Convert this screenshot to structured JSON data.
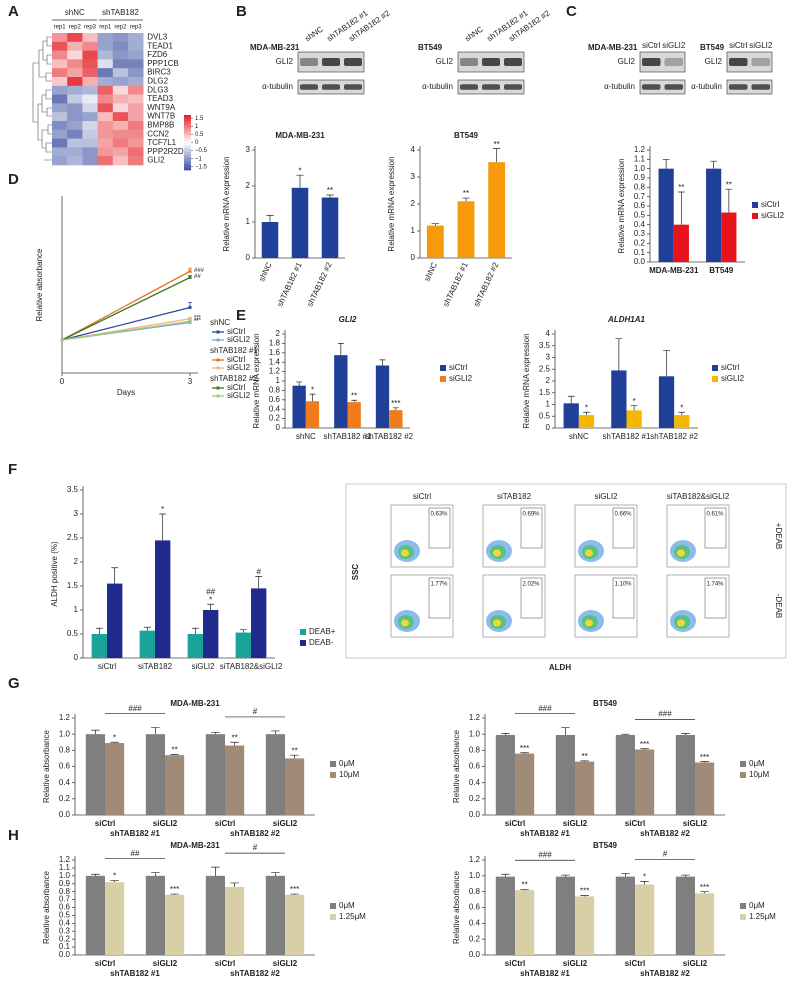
{
  "panel_labels": [
    "A",
    "B",
    "C",
    "D",
    "E",
    "F",
    "G",
    "H"
  ],
  "blots": [
    {
      "cell": "MDA-MB-231",
      "lanes": [
        "shNC",
        "shTAB182 #1",
        "shTAB182 #2"
      ],
      "rows": [
        "GLI2",
        "α-tubulin"
      ]
    },
    {
      "cell": "BT549",
      "lanes": [
        "shNC",
        "shTAB182 #1",
        "shTAB182 #2"
      ],
      "rows": [
        "GLI2",
        "α-tubulin"
      ]
    },
    {
      "cell": "MDA-MB-231",
      "lanes": [
        "siCtrl",
        "siGLI2"
      ],
      "rows": [
        "GLI2",
        "α-tubulin"
      ]
    },
    {
      "cell": "BT549",
      "lanes": [
        "siCtrl",
        "siGLI2"
      ],
      "rows": [
        "GLI2",
        "α-tubulin"
      ]
    }
  ],
  "flow": {
    "columns": [
      "siCtrl",
      "siTAB182",
      "siGLI2",
      "siTAB182&siGLI2"
    ],
    "rows": [
      "+DEAB",
      "-DEAB"
    ],
    "percents": [
      [
        "0.63%",
        "0.69%",
        "0.66%",
        "0.61%"
      ],
      [
        "1.77%",
        "2.02%",
        "1.10%",
        "1.74%"
      ]
    ],
    "ylabel": "SSC",
    "xlabel": "ALDH"
  },
  "chart_data": [
    {
      "type": "heatmap",
      "column_groups": [
        "shNC",
        "shTAB182"
      ],
      "columns": [
        "rep1",
        "rep2",
        "rep3",
        "rep1",
        "rep2",
        "rep3"
      ],
      "rows": [
        "DVL3",
        "TEAD1",
        "FZD6",
        "PPP1CB",
        "BIRC3",
        "DLG2",
        "DLG3",
        "TEAD3",
        "WNT9A",
        "WNT7B",
        "BMP8B",
        "CCN2",
        "TCF7L1",
        "PPP2R2D",
        "GLI2"
      ],
      "values": [
        [
          0.8,
          1.4,
          0.5,
          -0.9,
          -1.0,
          -0.8
        ],
        [
          1.3,
          0.6,
          0.9,
          -0.9,
          -1.1,
          -0.8
        ],
        [
          0.9,
          0.3,
          1.4,
          -0.7,
          -1.0,
          -0.9
        ],
        [
          0.5,
          0.9,
          1.3,
          -0.3,
          -1.2,
          -1.2
        ],
        [
          1.0,
          0.7,
          1.2,
          -1.3,
          -0.6,
          -1.0
        ],
        [
          0.4,
          1.5,
          0.6,
          -0.8,
          -0.9,
          -0.8
        ],
        [
          -0.9,
          -0.8,
          -0.7,
          1.2,
          0.3,
          0.9
        ],
        [
          -1.3,
          -0.5,
          -0.2,
          0.9,
          0.6,
          0.5
        ],
        [
          -0.9,
          -1.0,
          -0.4,
          1.3,
          0.3,
          0.7
        ],
        [
          -0.6,
          -1.0,
          -0.9,
          0.5,
          1.3,
          0.7
        ],
        [
          -1.1,
          -0.9,
          -0.4,
          0.8,
          0.6,
          1.0
        ],
        [
          -0.9,
          -1.2,
          -0.5,
          0.8,
          0.9,
          0.9
        ],
        [
          -1.3,
          -0.6,
          -0.6,
          0.7,
          1.0,
          0.8
        ],
        [
          -0.8,
          -0.8,
          -1.0,
          0.8,
          0.7,
          1.1
        ],
        [
          -0.9,
          -0.7,
          -1.0,
          1.1,
          0.5,
          1.0
        ]
      ],
      "zlim": [
        -1.7,
        1.7
      ],
      "colors": [
        "#3b4fa0",
        "#ffffff",
        "#e41f26"
      ],
      "zticks": [
        1.5,
        1,
        0.5,
        0,
        {
          "value": -0.5,
          "label": "−0.5"
        },
        {
          "value": -1,
          "label": "−1"
        },
        {
          "value": -1.5,
          "label": "−1.5"
        }
      ]
    },
    {
      "type": "bar",
      "title": "MDA-MB-231",
      "ylabel": "Relative mRNA expression",
      "categories": [
        "shNC",
        "shTAB182 #1",
        "shTAB182 #2"
      ],
      "series": [
        {
          "color": "#1f3f99",
          "values": [
            1.0,
            1.95,
            1.68
          ],
          "errors": [
            0.18,
            0.35,
            0.07
          ],
          "significance": [
            null,
            "*",
            "**"
          ]
        }
      ],
      "ylim": [
        0,
        3
      ],
      "yticks": [
        0,
        1,
        2,
        3
      ]
    },
    {
      "type": "bar",
      "title": "BT549",
      "ylabel": "Relative mRNA expression",
      "categories": [
        "shNC",
        "shTAB182 #1",
        "shTAB182 #2"
      ],
      "series": [
        {
          "color": "#f59a0a",
          "values": [
            1.2,
            2.1,
            3.55
          ],
          "errors": [
            0.07,
            0.12,
            0.5
          ],
          "significance": [
            null,
            "**",
            "**"
          ]
        }
      ],
      "ylim": [
        0,
        4
      ],
      "yticks": [
        0,
        1,
        2,
        3,
        4
      ]
    },
    {
      "type": "bar",
      "ylabel": "Relative mRNA expression",
      "categories": [
        "MDA-MB-231",
        "BT549"
      ],
      "series": [
        {
          "name": "siCtrl",
          "color": "#1f3f99",
          "values": [
            1.0,
            1.0
          ],
          "errors": [
            0.1,
            0.08
          ],
          "significance": [
            null,
            null
          ]
        },
        {
          "name": "siGLI2",
          "color": "#e8141b",
          "values": [
            0.4,
            0.53
          ],
          "errors": [
            0.35,
            0.25
          ],
          "significance": [
            "**",
            "**"
          ]
        }
      ],
      "ylim": [
        0,
        1.2
      ],
      "yticks": [
        {
          "value": 0,
          "label": "0.0"
        },
        0.1,
        0.2,
        0.3,
        0.4,
        0.5,
        0.6,
        0.7,
        0.8,
        0.9,
        {
          "value": 1,
          "label": "1.0"
        },
        1.1,
        1.2
      ],
      "legend": "right"
    },
    {
      "type": "line",
      "xlabel": "Days",
      "ylabel": "Relative absorbance",
      "x": [
        0,
        3
      ],
      "xlim": [
        0,
        3
      ],
      "xticks": [
        0,
        3
      ],
      "ylim": [
        0,
        5
      ],
      "series_groups": [
        {
          "name": "shNC",
          "series": [
            {
              "name": "siCtrl",
              "color": "#2a4a9e",
              "values": [
                1,
                2.3
              ],
              "errors": [
                null,
                0.2
              ],
              "significance": null
            },
            {
              "name": "siGLI2",
              "color": "#7da6d8",
              "values": [
                1,
                1.7
              ],
              "errors": [
                null,
                0.05
              ],
              "significance": "**"
            }
          ]
        },
        {
          "name": "shTAB182 #1",
          "series": [
            {
              "name": "siCtrl",
              "color": "#e8731a",
              "values": [
                1,
                3.75
              ],
              "errors": [
                null,
                0.12
              ],
              "significance": "###"
            },
            {
              "name": "siGLI2",
              "color": "#f5b27a",
              "values": [
                1,
                1.85
              ],
              "errors": [
                null,
                0.06
              ],
              "significance": "***"
            }
          ]
        },
        {
          "name": "shTAB182 #2",
          "series": [
            {
              "name": "siCtrl",
              "color": "#3d7a2a",
              "values": [
                1,
                3.5
              ],
              "errors": [
                null,
                0.08
              ],
              "significance": "##"
            },
            {
              "name": "siGLI2",
              "color": "#9ccc7a",
              "values": [
                1,
                1.75
              ],
              "errors": [
                null,
                0.05
              ],
              "significance": "***"
            }
          ]
        }
      ]
    },
    {
      "type": "bar",
      "title": "GLI2",
      "ylabel": "Relative mRNA expression",
      "categories": [
        "shNC",
        "shTAB182 #1",
        "shTAB182 #2"
      ],
      "series": [
        {
          "name": "siCtrl",
          "color": "#1f3f99",
          "values": [
            0.9,
            1.55,
            1.33
          ],
          "errors": [
            0.08,
            0.25,
            0.12
          ],
          "significance": [
            null,
            null,
            null
          ]
        },
        {
          "name": "siGLI2",
          "color": "#f07c1e",
          "values": [
            0.57,
            0.55,
            0.38
          ],
          "errors": [
            0.15,
            0.04,
            0.05
          ],
          "significance": [
            "*",
            "**",
            "***"
          ]
        }
      ],
      "ylim": [
        0,
        2
      ],
      "yticks": [
        0,
        0.2,
        0.4,
        0.6,
        0.8,
        1,
        1.2,
        1.4,
        1.6,
        1.8,
        2
      ],
      "legend": "right"
    },
    {
      "type": "bar",
      "title": "ALDH1A1",
      "ylabel": "Relative mRNA expression",
      "categories": [
        "shNC",
        "shTAB182 #1",
        "shTAB182 #2"
      ],
      "series": [
        {
          "name": "siCtrl",
          "color": "#1f3f99",
          "values": [
            1.05,
            2.45,
            2.2
          ],
          "errors": [
            0.3,
            1.35,
            1.1
          ],
          "significance": [
            null,
            null,
            null
          ]
        },
        {
          "name": "siGLI2",
          "color": "#f5b800",
          "values": [
            0.55,
            0.75,
            0.55
          ],
          "errors": [
            0.12,
            0.2,
            0.12
          ],
          "significance": [
            "*",
            "*",
            "*"
          ]
        }
      ],
      "ylim": [
        0,
        4
      ],
      "yticks": [
        0,
        0.5,
        1,
        1.5,
        2,
        2.5,
        3,
        3.5,
        4
      ],
      "legend": "right"
    },
    {
      "type": "bar",
      "ylabel": "ALDH positive (%)",
      "categories": [
        "siCtrl",
        "siTAB182",
        "siGLI2",
        "siTAB182&siGLI2"
      ],
      "series": [
        {
          "name": "DEAB+",
          "color": "#1aa39a",
          "values": [
            0.5,
            0.57,
            0.5,
            0.53
          ],
          "errors": [
            0.12,
            0.07,
            0.12,
            0.06
          ],
          "significance": [
            null,
            null,
            null,
            null
          ]
        },
        {
          "name": "DEAB-",
          "color": "#1f2a8c",
          "values": [
            1.55,
            2.45,
            1.0,
            1.45
          ],
          "errors": [
            0.33,
            0.55,
            0.12,
            0.25
          ],
          "significance": [
            null,
            "*",
            [
              "##",
              "*"
            ],
            "#"
          ]
        }
      ],
      "ylim": [
        0,
        3.5
      ],
      "yticks": [
        0,
        0.5,
        1,
        1.5,
        2,
        2.5,
        3,
        3.5
      ],
      "legend": "right"
    },
    {
      "type": "bar",
      "title": "MDA-MB-231",
      "ylabel": "Relative absorbance",
      "categories": [
        "siCtrl",
        "siGLI2",
        "siCtrl",
        "siGLI2"
      ],
      "groups": [
        "shTAB182 #1",
        "shTAB182 #2"
      ],
      "brackets": [
        "###",
        "#"
      ],
      "series": [
        {
          "name": "0μM",
          "color": "#7f7f7f",
          "values": [
            1.0,
            1.0,
            1.0,
            1.0
          ],
          "errors": [
            0.05,
            0.08,
            0.02,
            0.04
          ],
          "significance": [
            null,
            null,
            null,
            null
          ]
        },
        {
          "name": "10μM",
          "color": "#a08a78",
          "values": [
            0.89,
            0.74,
            0.86,
            0.7
          ],
          "errors": [
            0.01,
            0.01,
            0.04,
            0.04
          ],
          "significance": [
            "*",
            "**",
            "**",
            "**"
          ]
        }
      ],
      "ylim": [
        0,
        1.2
      ],
      "yticks": [
        {
          "value": 0,
          "label": "0.0"
        },
        0.2,
        0.4,
        0.6,
        0.8,
        {
          "value": 1,
          "label": "1.0"
        },
        1.2
      ],
      "legend": "right"
    },
    {
      "type": "bar",
      "title": "BT549",
      "ylabel": "Relative absorbance",
      "categories": [
        "siCtrl",
        "siGLI2",
        "siCtrl",
        "siGLI2"
      ],
      "groups": [
        "shTAB182 #1",
        "shTAB182 #2"
      ],
      "brackets": [
        "###",
        "###"
      ],
      "series": [
        {
          "name": "0μM",
          "color": "#7f7f7f",
          "values": [
            0.99,
            0.99,
            0.99,
            0.99
          ],
          "errors": [
            0.02,
            0.09,
            0.01,
            0.02
          ],
          "significance": [
            null,
            null,
            null,
            null
          ]
        },
        {
          "name": "10μM",
          "color": "#a08a78",
          "values": [
            0.76,
            0.66,
            0.81,
            0.65
          ],
          "errors": [
            0.01,
            0.01,
            0.01,
            0.01
          ],
          "significance": [
            "***",
            "**",
            "***",
            "***"
          ]
        }
      ],
      "ylim": [
        0,
        1.2
      ],
      "yticks": [
        {
          "value": 0,
          "label": "0.0"
        },
        0.2,
        0.4,
        0.6,
        0.8,
        {
          "value": 1,
          "label": "1.0"
        },
        1.2
      ],
      "legend": "right"
    },
    {
      "type": "bar",
      "title": "MDA-MB-231",
      "ylabel": "Relative absorbance",
      "categories": [
        "siCtrl",
        "siGLI2",
        "siCtrl",
        "siGLI2"
      ],
      "groups": [
        "shTAB182 #1",
        "shTAB182 #2"
      ],
      "brackets": [
        "##",
        "#"
      ],
      "series": [
        {
          "name": "0μM",
          "color": "#7f7f7f",
          "values": [
            1.0,
            1.0,
            1.0,
            1.0
          ],
          "errors": [
            0.02,
            0.04,
            0.11,
            0.04
          ],
          "significance": [
            null,
            null,
            null,
            null
          ]
        },
        {
          "name": "1.25μM",
          "color": "#d9cfa6",
          "values": [
            0.92,
            0.76,
            0.86,
            0.76
          ],
          "errors": [
            0.02,
            0.01,
            0.05,
            0.01
          ],
          "significance": [
            "*",
            "***",
            null,
            "***"
          ]
        }
      ],
      "ylim": [
        0,
        1.2
      ],
      "yticks": [
        {
          "value": 0,
          "label": "0.0"
        },
        0.1,
        0.2,
        0.3,
        0.4,
        0.5,
        0.6,
        0.7,
        0.8,
        0.9,
        {
          "value": 1,
          "label": "1.0"
        },
        1.1,
        1.2
      ],
      "legend": "right"
    },
    {
      "type": "bar",
      "title": "BT549",
      "ylabel": "Relative absorbance",
      "categories": [
        "siCtrl",
        "siGLI2",
        "siCtrl",
        "siGLI2"
      ],
      "groups": [
        "shTAB182 #1",
        "shTAB182 #2"
      ],
      "brackets": [
        "###",
        "#"
      ],
      "series": [
        {
          "name": "0μM",
          "color": "#7f7f7f",
          "values": [
            0.99,
            0.99,
            0.99,
            0.99
          ],
          "errors": [
            0.03,
            0.02,
            0.04,
            0.02
          ],
          "significance": [
            null,
            null,
            null,
            null
          ]
        },
        {
          "name": "1.25μM",
          "color": "#d9cfa6",
          "values": [
            0.82,
            0.74,
            0.89,
            0.78
          ],
          "errors": [
            0.01,
            0.01,
            0.04,
            0.02
          ],
          "significance": [
            "**",
            "***",
            "*",
            "***"
          ]
        }
      ],
      "ylim": [
        0,
        1.2
      ],
      "yticks": [
        {
          "value": 0,
          "label": "0.0"
        },
        0.2,
        0.4,
        0.6,
        0.8,
        {
          "value": 1,
          "label": "1.0"
        },
        1.2
      ],
      "legend": "right"
    }
  ]
}
